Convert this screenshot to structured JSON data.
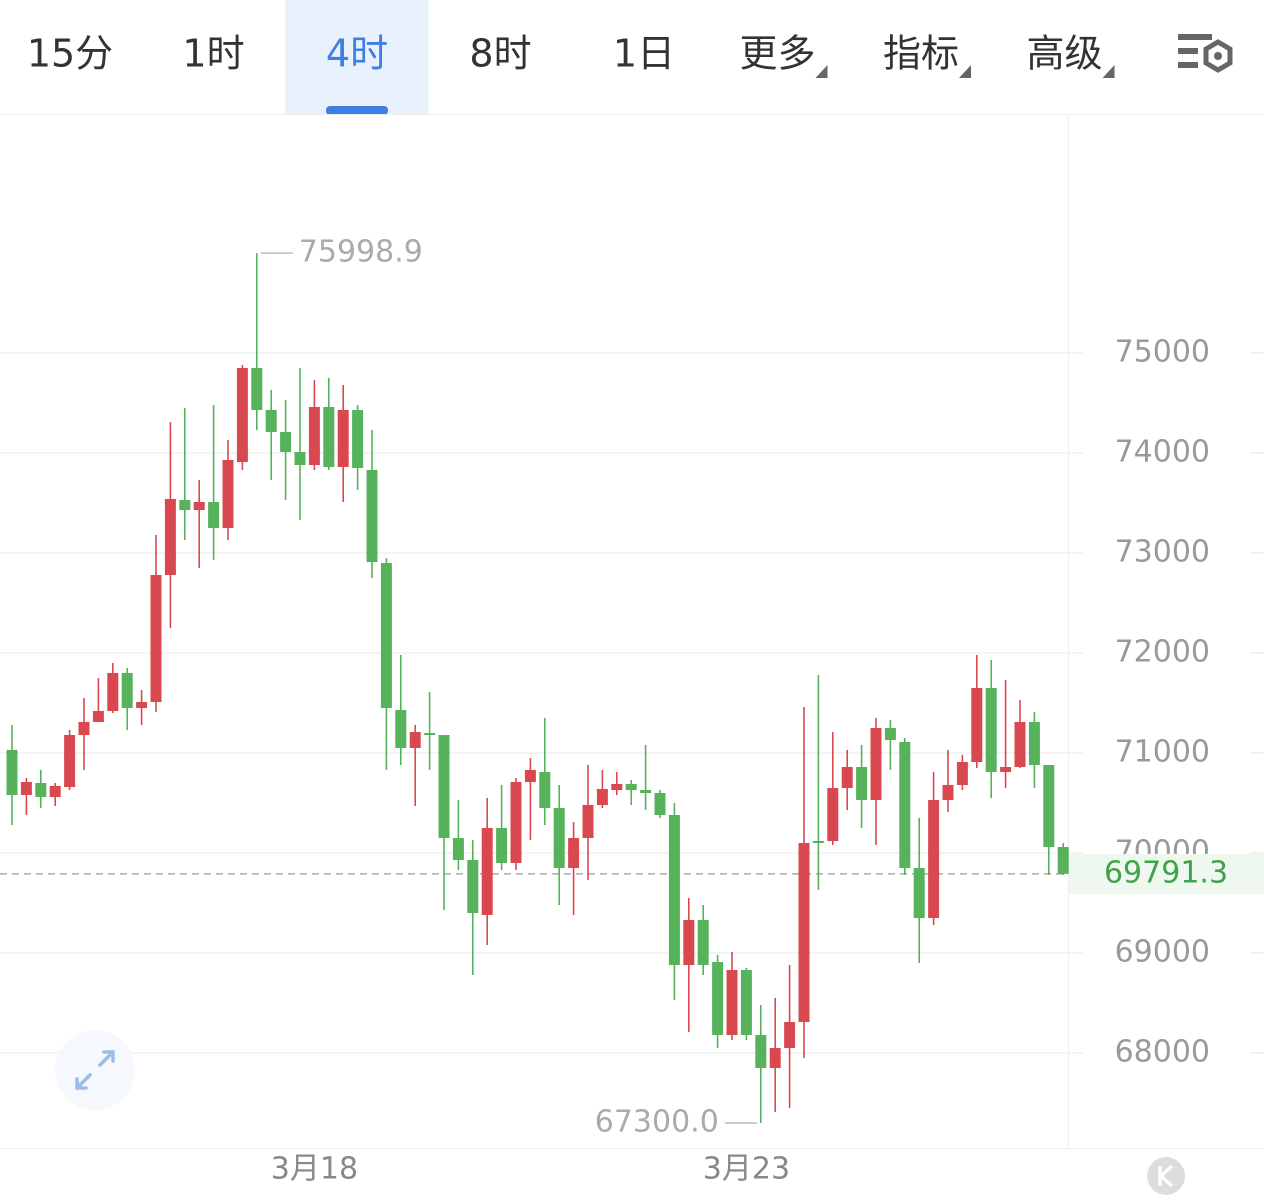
{
  "toolbar": {
    "tabs": [
      {
        "label": "15分"
      },
      {
        "label": "1时"
      },
      {
        "label": "4时"
      },
      {
        "label": "8时"
      },
      {
        "label": "1日"
      },
      {
        "label": "更多",
        "dropdown": true
      },
      {
        "label": "指标",
        "dropdown": true
      },
      {
        "label": "高级",
        "dropdown": true
      }
    ],
    "active_tab": 2
  },
  "chart_data": {
    "type": "candlestick",
    "categories": [
      null,
      null,
      null,
      null,
      null,
      null,
      null,
      null,
      null,
      null,
      null,
      null,
      null,
      null,
      null,
      null,
      null,
      null,
      null,
      null,
      null,
      "3月18",
      null,
      null,
      null,
      null,
      null,
      null,
      null,
      null,
      null,
      null,
      null,
      null,
      null,
      null,
      null,
      null,
      null,
      null,
      null,
      null,
      null,
      null,
      null,
      null,
      null,
      null,
      null,
      null,
      null,
      "3月23",
      null,
      null,
      null,
      null,
      null,
      null,
      null,
      null,
      null,
      null,
      null,
      null,
      null,
      null,
      null,
      null,
      null,
      null,
      null,
      null,
      null,
      null
    ],
    "open": [
      71030,
      70580,
      70700,
      70560,
      70660,
      71180,
      71310,
      71420,
      71800,
      71450,
      71510,
      72780,
      73530,
      73430,
      73510,
      73250,
      73910,
      74850,
      74430,
      74210,
      74010,
      73880,
      74460,
      73860,
      74430,
      73830,
      72900,
      71430,
      71050,
      71200,
      71180,
      70150,
      69930,
      69380,
      70250,
      69900,
      70710,
      70810,
      70450,
      69850,
      70150,
      70480,
      70630,
      70690,
      70630,
      70600,
      70380,
      68880,
      69330,
      68910,
      68180,
      68830,
      68180,
      67850,
      68050,
      68310,
      70120,
      70120,
      70650,
      70860,
      70530,
      71250,
      71110,
      69850,
      69350,
      70530,
      70680,
      70910,
      71650,
      70810,
      70860,
      71310,
      70880,
      70060
    ],
    "high": [
      71280,
      70750,
      70830,
      70700,
      71230,
      71550,
      71750,
      71900,
      71850,
      71630,
      73180,
      74310,
      74450,
      73730,
      74480,
      74130,
      74880,
      75998.9,
      74630,
      74530,
      74850,
      74730,
      74750,
      74680,
      74480,
      74230,
      72950,
      71980,
      71280,
      71610,
      71180,
      70530,
      70130,
      70550,
      70680,
      70750,
      70950,
      71350,
      70680,
      70310,
      70880,
      70830,
      70810,
      70730,
      71080,
      70630,
      70500,
      69550,
      69480,
      68980,
      69010,
      68850,
      68480,
      68550,
      68880,
      71460,
      71780,
      71210,
      71030,
      71080,
      71350,
      71330,
      71150,
      70350,
      70810,
      71030,
      70980,
      71980,
      71930,
      71730,
      71530,
      71410,
      70880,
      70100
    ],
    "low": [
      70280,
      70380,
      70450,
      70470,
      70630,
      70830,
      71310,
      71400,
      71230,
      71280,
      71410,
      72250,
      73130,
      72850,
      72930,
      73130,
      73830,
      74230,
      73730,
      73530,
      73330,
      73830,
      73830,
      73510,
      73630,
      72750,
      70830,
      70880,
      70470,
      70830,
      69430,
      69830,
      68780,
      69080,
      69830,
      69830,
      70130,
      70280,
      69480,
      69380,
      69730,
      70450,
      70580,
      70480,
      70430,
      70350,
      68530,
      68210,
      68780,
      68050,
      68130,
      68130,
      67300,
      67410,
      67450,
      67950,
      69630,
      70080,
      70430,
      70250,
      70080,
      70830,
      69780,
      68900,
      69280,
      70410,
      70630,
      70850,
      70550,
      70650,
      70850,
      70650,
      69780,
      69780
    ],
    "close": [
      70580,
      70710,
      70560,
      70670,
      71180,
      71310,
      71420,
      71800,
      71450,
      71510,
      72780,
      73540,
      73430,
      73510,
      73250,
      73930,
      74850,
      74430,
      74210,
      74010,
      73880,
      74460,
      73860,
      74430,
      73850,
      72910,
      71450,
      71050,
      71210,
      71180,
      70150,
      69930,
      69400,
      70250,
      69900,
      70710,
      70830,
      70450,
      69850,
      70150,
      70480,
      70640,
      70690,
      70630,
      70600,
      70380,
      68880,
      69330,
      68880,
      68180,
      68830,
      68180,
      67850,
      68050,
      68310,
      70100,
      70100,
      70650,
      70860,
      70530,
      71250,
      71130,
      69850,
      69350,
      70530,
      70680,
      70910,
      71650,
      70810,
      70860,
      71310,
      70880,
      70060,
      69791.3
    ],
    "up_color": "#d9484f",
    "down_color": "#56b35c",
    "ylim": [
      67050,
      77380
    ],
    "yticks": [
      68000,
      69000,
      70000,
      71000,
      72000,
      73000,
      74000,
      75000
    ],
    "grid": true,
    "max_label": 75998.9,
    "min_label": {
      "value": 67300,
      "label": "67300.0"
    },
    "last_price": 69791.3
  }
}
